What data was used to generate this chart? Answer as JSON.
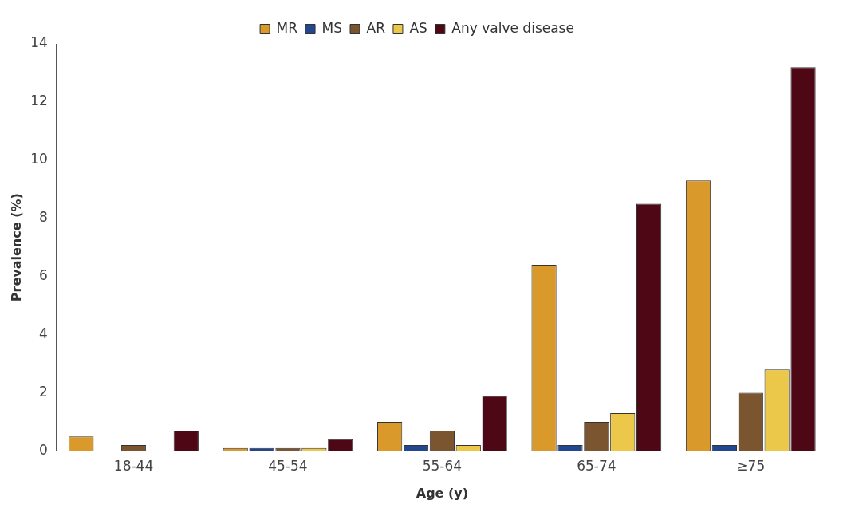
{
  "chart_data": {
    "type": "bar",
    "xlabel": "Age (y)",
    "ylabel": "Prevalence (%)",
    "categories": [
      "18-44",
      "45-54",
      "55-64",
      "65-74",
      "≥75"
    ],
    "series": [
      {
        "name": "MR",
        "color": "#d99a2b",
        "values": [
          0.5,
          0.1,
          1.0,
          6.4,
          9.3
        ]
      },
      {
        "name": "MS",
        "color": "#23478f",
        "values": [
          0,
          0.1,
          0.2,
          0.2,
          0.2
        ]
      },
      {
        "name": "AR",
        "color": "#7a5530",
        "values": [
          0.2,
          0.1,
          0.7,
          1.0,
          2.0
        ]
      },
      {
        "name": "AS",
        "color": "#ecc84a",
        "values": [
          0,
          0.1,
          0.2,
          1.3,
          2.8
        ]
      },
      {
        "name": "Any valve disease",
        "color": "#4e0714",
        "values": [
          0.7,
          0.4,
          1.9,
          8.5,
          13.2
        ]
      }
    ],
    "ylim": [
      0,
      14
    ],
    "yticks": [
      0,
      2,
      4,
      6,
      8,
      10,
      12,
      14
    ],
    "grid": false,
    "legend": "top"
  }
}
